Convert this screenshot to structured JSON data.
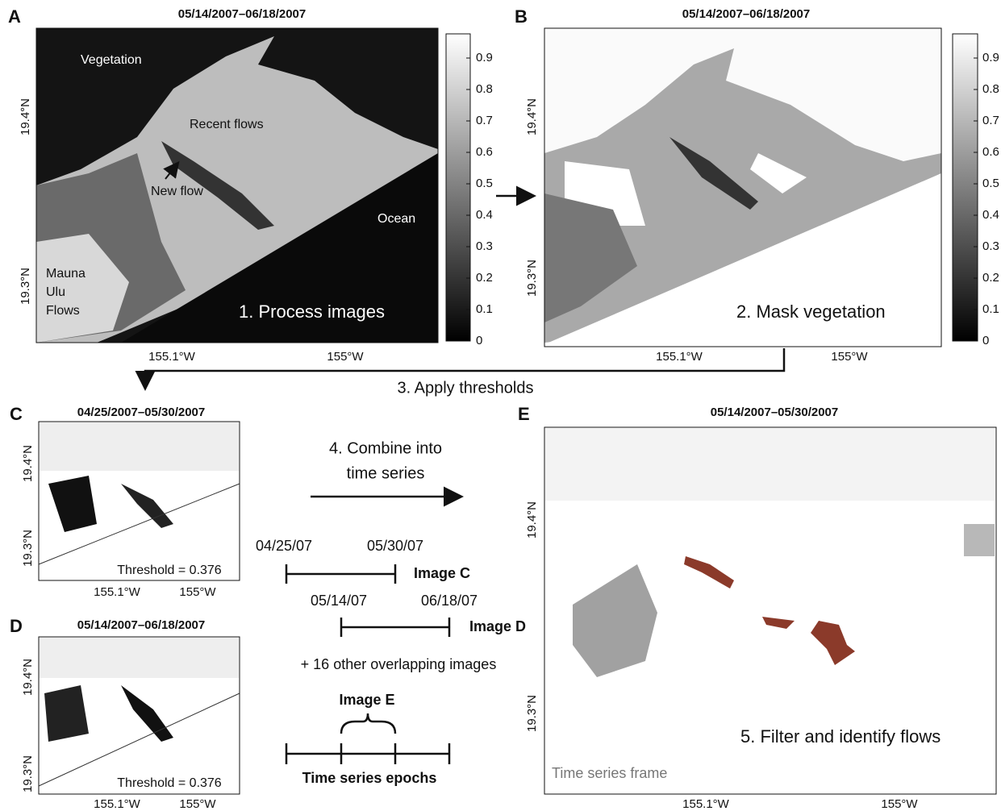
{
  "panel_a": {
    "letter": "A",
    "title": "05/14/2007–06/18/2007",
    "y_ticks": [
      "19.4°N",
      "19.3°N"
    ],
    "x_ticks": [
      "155.1°W",
      "155°W"
    ],
    "annotations": [
      "Vegetation",
      "Recent flows",
      "New flow",
      "Ocean",
      "Mauna",
      "Ulu",
      "Flows"
    ],
    "caption": "1. Process images",
    "colorbar_ticks": [
      "0.9",
      "0.8",
      "0.7",
      "0.6",
      "0.5",
      "0.4",
      "0.3",
      "0.2",
      "0.1",
      "0"
    ]
  },
  "panel_b": {
    "letter": "B",
    "title": "05/14/2007–06/18/2007",
    "y_ticks": [
      "19.4°N",
      "19.3°N"
    ],
    "x_ticks": [
      "155.1°W",
      "155°W"
    ],
    "caption": "2. Mask vegetation",
    "colorbar_ticks": [
      "0.9",
      "0.8",
      "0.7",
      "0.6",
      "0.5",
      "0.4",
      "0.3",
      "0.2",
      "0.1",
      "0"
    ]
  },
  "step_3": "3. Apply thresholds",
  "panel_c": {
    "letter": "C",
    "title": "04/25/2007–05/30/2007",
    "y_ticks": [
      "19.4°N",
      "19.3°N"
    ],
    "x_ticks": [
      "155.1°W",
      "155°W"
    ],
    "threshold": "Threshold = 0.376"
  },
  "panel_d": {
    "letter": "D",
    "title": "05/14/2007–06/18/2007",
    "y_ticks": [
      "19.4°N",
      "19.3°N"
    ],
    "x_ticks": [
      "155.1°W",
      "155°W"
    ],
    "threshold": "Threshold = 0.376"
  },
  "step_4": {
    "lines": [
      "4. Combine into",
      "time series"
    ],
    "image_c": {
      "start": "04/25/07",
      "end": "05/30/07",
      "label": "Image C"
    },
    "image_d": {
      "start": "05/14/07",
      "end": "06/18/07",
      "label": "Image D"
    },
    "others": "+ 16 other overlapping images",
    "image_e": "Image E",
    "epochs": "Time series epochs"
  },
  "panel_e": {
    "letter": "E",
    "title": "05/14/2007–05/30/2007",
    "y_ticks": [
      "19.4°N",
      "19.3°N"
    ],
    "x_ticks": [
      "155.1°W",
      "155°W"
    ],
    "caption": "5. Filter and identify flows",
    "frame_label": "Time series frame"
  }
}
